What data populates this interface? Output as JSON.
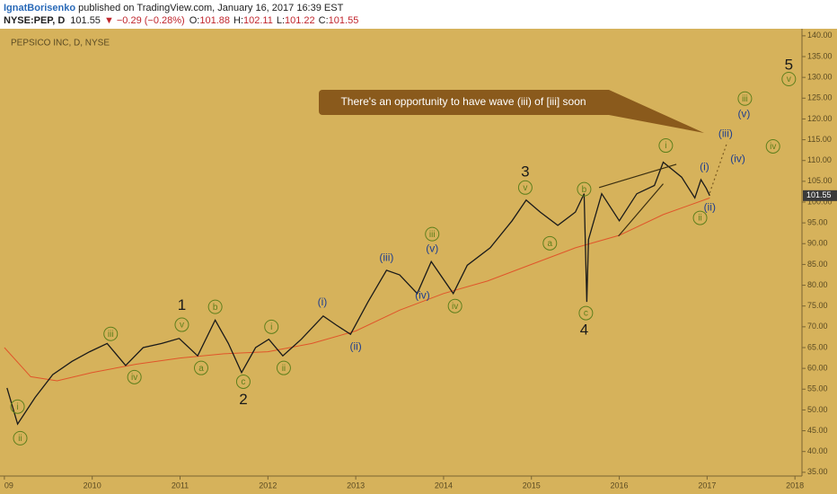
{
  "header": {
    "author": "IgnatBorisenko",
    "published": "published on TradingView.com, January 16, 2017 16:39 EST",
    "symbol": "NYSE:PEP, D",
    "last": "101.55",
    "change": "▼ −0.29 (−0.28%)",
    "ohlc": [
      {
        "label": "O:",
        "value": "101.88"
      },
      {
        "label": "H:",
        "value": "102.11"
      },
      {
        "label": "L:",
        "value": "101.22"
      },
      {
        "label": "C:",
        "value": "101.55"
      }
    ]
  },
  "chart_data": {
    "type": "line",
    "title": "PEPSICO INC, D, NYSE",
    "callout": "There's an opportunity to have wave (iii) of [iii] soon",
    "xlim": [
      2008.95,
      2018.08
    ],
    "ylim": [
      34.1,
      141.7
    ],
    "xticks": [
      {
        "value": 2009,
        "label": "09"
      },
      2010,
      2011,
      2012,
      2013,
      2014,
      2015,
      2016,
      2017,
      2018
    ],
    "yticks": [
      {
        "value": 35,
        "label": "35.00"
      },
      {
        "value": 40,
        "label": "40.00"
      },
      {
        "value": 45,
        "label": "45.00"
      },
      {
        "value": 50,
        "label": "50.00"
      },
      {
        "value": 55,
        "label": "55.00"
      },
      {
        "value": 60,
        "label": "60.00"
      },
      {
        "value": 65,
        "label": "65.00"
      },
      {
        "value": 70,
        "label": "70.00"
      },
      {
        "value": 75,
        "label": "75.00"
      },
      {
        "value": 80,
        "label": "80.00"
      },
      {
        "value": 85,
        "label": "85.00"
      },
      {
        "value": 90,
        "label": "90.00"
      },
      {
        "value": 95,
        "label": "95.00"
      },
      {
        "value": 100,
        "label": "100.00"
      },
      {
        "value": 105,
        "label": "105.00"
      },
      {
        "value": 110,
        "label": "110.00"
      },
      {
        "value": 115,
        "label": "115.00"
      },
      {
        "value": 120,
        "label": "120.00"
      },
      {
        "value": 125,
        "label": "125.00"
      },
      {
        "value": 130,
        "label": "130.00"
      },
      {
        "value": 135,
        "label": "135.00"
      },
      {
        "value": 140,
        "label": "140.00"
      }
    ],
    "series": [
      {
        "color": "#1a1a1a",
        "x": [
          2009.03,
          2009.15,
          2009.35,
          2009.55,
          2009.77,
          2009.97,
          2010.17,
          2010.38,
          2010.58,
          2010.79,
          2010.99,
          2011.2,
          2011.4,
          2011.55,
          2011.7,
          2011.86,
          2012.01,
          2012.17,
          2012.38,
          2012.63,
          2012.78,
          2012.94,
          2013.14,
          2013.35,
          2013.5,
          2013.7,
          2013.86,
          2014.11,
          2014.27,
          2014.53,
          2014.78,
          2014.94,
          2015.1,
          2015.3,
          2015.5,
          2015.6,
          2015.63,
          2015.65,
          2015.8,
          2016.0,
          2016.2,
          2016.4,
          2016.5,
          2016.71,
          2016.86,
          2016.93,
          2016.99,
          2017.03
        ],
        "values": [
          55.3,
          46.6,
          53,
          58.5,
          61.7,
          64,
          66,
          60.7,
          65,
          66,
          67.2,
          63,
          71.6,
          66,
          59,
          65,
          67,
          63,
          67,
          72.6,
          70.4,
          68.2,
          76,
          83.6,
          82.5,
          78,
          85.7,
          78,
          84.8,
          89,
          95.5,
          100.5,
          97.6,
          94.4,
          97.6,
          102,
          76,
          91,
          102,
          95.5,
          102,
          104,
          109.6,
          106,
          101,
          105.4,
          103.3,
          101.55
        ]
      },
      {
        "color": "#e0552a",
        "x": [
          2009.0,
          2009.3,
          2009.6,
          2010.0,
          2010.5,
          2011.0,
          2011.5,
          2012.0,
          2012.5,
          2013.0,
          2013.5,
          2014.0,
          2014.5,
          2015.0,
          2015.5,
          2016.0,
          2016.5,
          2017.03
        ],
        "values": [
          65,
          58,
          57,
          59,
          61,
          62.5,
          63.5,
          64,
          66,
          69,
          74,
          78,
          81,
          85,
          89,
          92,
          97,
          101
        ]
      }
    ],
    "drawings": [
      {
        "color": "#3a2e10",
        "x": [
          2015.77,
          2016.65
        ],
        "y": [
          103.5,
          109.1
        ]
      },
      {
        "color": "#3a2e10",
        "x": [
          2015.99,
          2016.5
        ],
        "y": [
          91.8,
          104.4
        ]
      },
      {
        "color": "#7a5a20",
        "dashed": true,
        "x": [
          2017.03,
          2017.23
        ],
        "y": [
          102.2,
          114.5
        ]
      }
    ],
    "annotations": [
      {
        "color": "#1a1a1a",
        "circled": false,
        "labels": [
          {
            "text": "1",
            "x": 2011.02,
            "y": 75.2
          },
          {
            "text": "2",
            "x": 2011.72,
            "y": 52.5
          },
          {
            "text": "3",
            "x": 2014.93,
            "y": 107.2
          },
          {
            "text": "4",
            "x": 2015.6,
            "y": 69.2
          },
          {
            "text": "5",
            "x": 2017.93,
            "y": 133
          }
        ]
      },
      {
        "color": "#5e7f1c",
        "circled": true,
        "labels": [
          {
            "text": "i",
            "x": 2009.15,
            "y": 50.8
          },
          {
            "text": "ii",
            "x": 2009.18,
            "y": 43.2
          },
          {
            "text": "iii",
            "x": 2010.21,
            "y": 68.3
          },
          {
            "text": "iv",
            "x": 2010.48,
            "y": 57.9
          },
          {
            "text": "v",
            "x": 2011.02,
            "y": 70.5
          },
          {
            "text": "a",
            "x": 2011.24,
            "y": 60.1
          },
          {
            "text": "b",
            "x": 2011.4,
            "y": 74.8
          },
          {
            "text": "c",
            "x": 2011.72,
            "y": 56.8
          },
          {
            "text": "i",
            "x": 2012.04,
            "y": 70
          },
          {
            "text": "ii",
            "x": 2012.18,
            "y": 60.1
          },
          {
            "text": "iii",
            "x": 2013.87,
            "y": 92.3
          },
          {
            "text": "iv",
            "x": 2014.13,
            "y": 75
          },
          {
            "text": "v",
            "x": 2014.93,
            "y": 103.5
          },
          {
            "text": "a",
            "x": 2015.21,
            "y": 90.1
          },
          {
            "text": "b",
            "x": 2015.6,
            "y": 103.1
          },
          {
            "text": "c",
            "x": 2015.62,
            "y": 73.3
          },
          {
            "text": "i",
            "x": 2016.53,
            "y": 113.6
          },
          {
            "text": "ii",
            "x": 2016.92,
            "y": 96.2
          },
          {
            "text": "iv",
            "x": 2017.75,
            "y": 113.4
          },
          {
            "text": "iii",
            "x": 2017.43,
            "y": 124.9
          },
          {
            "text": "v",
            "x": 2017.93,
            "y": 129.6
          }
        ]
      },
      {
        "color": "#1f3f8f",
        "circled": false,
        "labels": [
          {
            "text": "(i)",
            "x": 2012.62,
            "y": 75.9
          },
          {
            "text": "(ii)",
            "x": 2013.0,
            "y": 65.3
          },
          {
            "text": "(iii)",
            "x": 2013.35,
            "y": 86.6
          },
          {
            "text": "(v)",
            "x": 2013.87,
            "y": 88.8
          },
          {
            "text": "(iv)",
            "x": 2013.76,
            "y": 77.6
          },
          {
            "text": "(i)",
            "x": 2016.97,
            "y": 108.5
          },
          {
            "text": "(ii)",
            "x": 2017.03,
            "y": 98.7
          },
          {
            "text": "(iii)",
            "x": 2017.21,
            "y": 116.5
          },
          {
            "text": "(iv)",
            "x": 2017.35,
            "y": 110.4
          },
          {
            "text": "(v)",
            "x": 2017.42,
            "y": 121.2
          }
        ]
      }
    ]
  }
}
